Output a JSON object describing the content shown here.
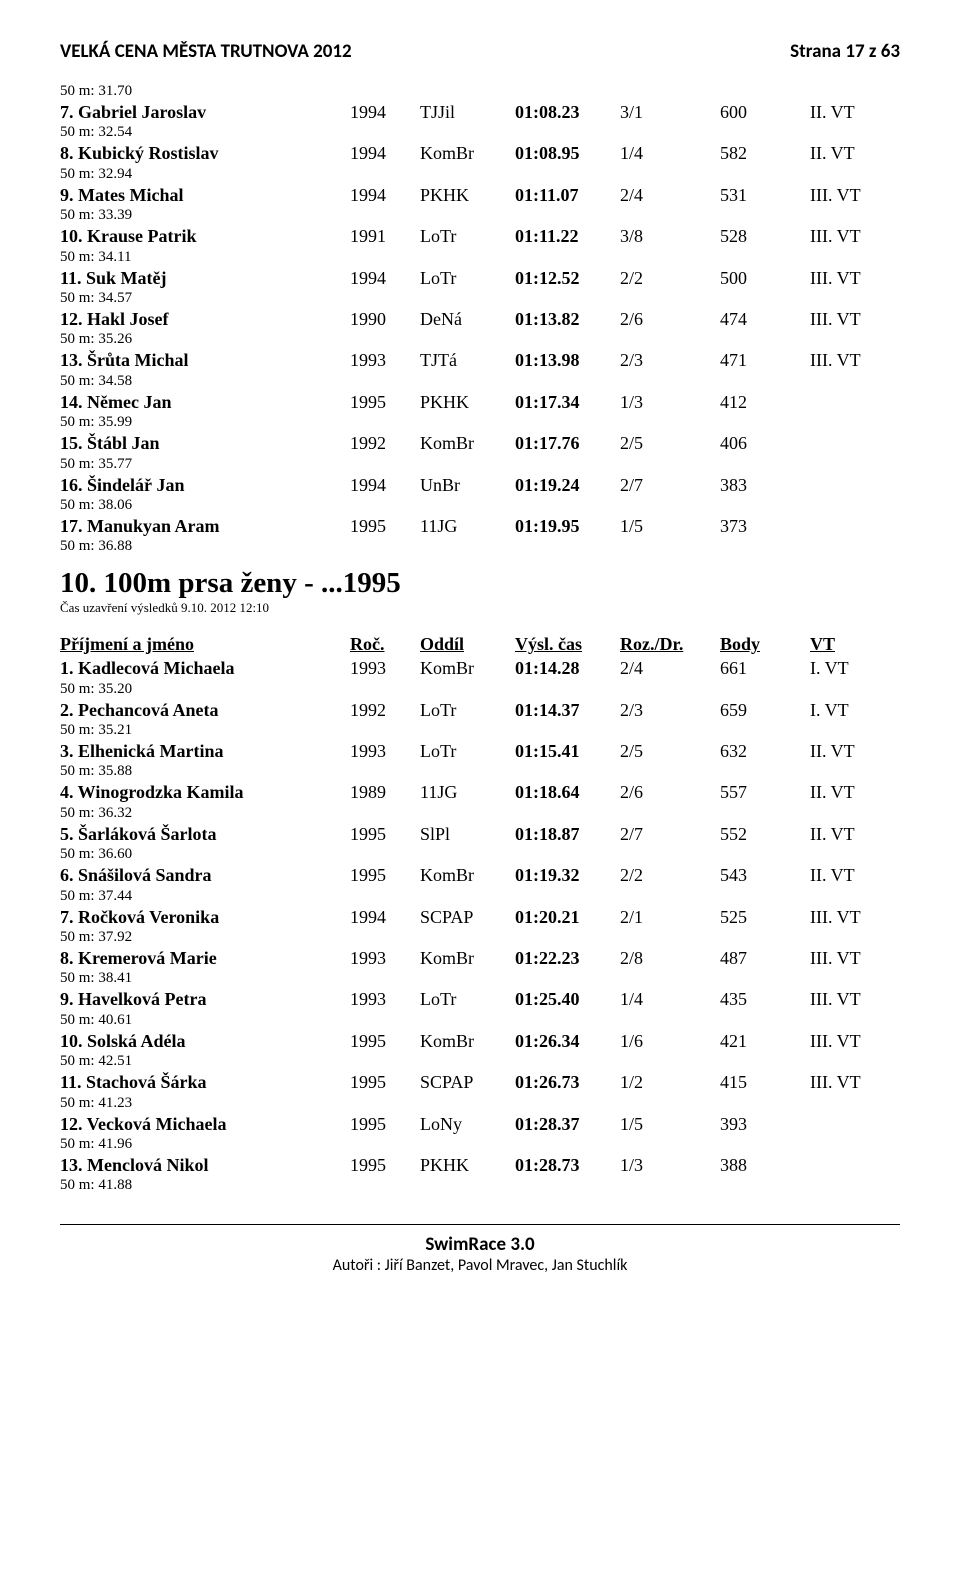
{
  "header": {
    "title": "VELKÁ CENA MĚSTA TRUTNOVA 2012",
    "page": "Strana 17 z 63"
  },
  "table1": {
    "first_split": "50 m: 31.70",
    "rows": [
      {
        "name": "7. Gabriel Jaroslav",
        "year": "1994",
        "club": "TJJil",
        "time": "01:08.23",
        "rozdr": "3/1",
        "body": "600",
        "vt": "II. VT",
        "split": "50 m: 32.54"
      },
      {
        "name": "8. Kubický Rostislav",
        "year": "1994",
        "club": "KomBr",
        "time": "01:08.95",
        "rozdr": "1/4",
        "body": "582",
        "vt": "II. VT",
        "split": "50 m: 32.94"
      },
      {
        "name": "9. Mates Michal",
        "year": "1994",
        "club": "PKHK",
        "time": "01:11.07",
        "rozdr": "2/4",
        "body": "531",
        "vt": "III. VT",
        "split": "50 m: 33.39"
      },
      {
        "name": "10. Krause Patrik",
        "year": "1991",
        "club": "LoTr",
        "time": "01:11.22",
        "rozdr": "3/8",
        "body": "528",
        "vt": "III. VT",
        "split": "50 m: 34.11"
      },
      {
        "name": "11. Suk Matěj",
        "year": "1994",
        "club": "LoTr",
        "time": "01:12.52",
        "rozdr": "2/2",
        "body": "500",
        "vt": "III. VT",
        "split": "50 m: 34.57"
      },
      {
        "name": "12. Hakl Josef",
        "year": "1990",
        "club": "DeNá",
        "time": "01:13.82",
        "rozdr": "2/6",
        "body": "474",
        "vt": "III. VT",
        "split": "50 m: 35.26"
      },
      {
        "name": "13. Šrůta Michal",
        "year": "1993",
        "club": "TJTá",
        "time": "01:13.98",
        "rozdr": "2/3",
        "body": "471",
        "vt": "III. VT",
        "split": "50 m: 34.58"
      },
      {
        "name": "14. Němec Jan",
        "year": "1995",
        "club": "PKHK",
        "time": "01:17.34",
        "rozdr": "1/3",
        "body": "412",
        "vt": "",
        "split": "50 m: 35.99"
      },
      {
        "name": "15. Štábl Jan",
        "year": "1992",
        "club": "KomBr",
        "time": "01:17.76",
        "rozdr": "2/5",
        "body": "406",
        "vt": "",
        "split": "50 m: 35.77"
      },
      {
        "name": "16. Šindelář Jan",
        "year": "1994",
        "club": "UnBr",
        "time": "01:19.24",
        "rozdr": "2/7",
        "body": "383",
        "vt": "",
        "split": "50 m: 38.06"
      },
      {
        "name": "17. Manukyan Aram",
        "year": "1995",
        "club": "11JG",
        "time": "01:19.95",
        "rozdr": "1/5",
        "body": "373",
        "vt": "",
        "split": "50 m: 36.88"
      }
    ]
  },
  "section": {
    "title": "10. 100m prsa ženy - ...1995",
    "sub": "Čas uzavření výsledků 9.10. 2012 12:10"
  },
  "columns": {
    "name": "Příjmení a jméno",
    "year": "Roč.",
    "club": "Oddíl",
    "time": "Výsl. čas",
    "rozdr": "Roz./Dr.",
    "body": "Body",
    "vt": "VT"
  },
  "table2": {
    "rows": [
      {
        "name": "1. Kadlecová Michaela",
        "year": "1993",
        "club": "KomBr",
        "time": "01:14.28",
        "rozdr": "2/4",
        "body": "661",
        "vt": "I. VT",
        "split": "50 m: 35.20"
      },
      {
        "name": "2. Pechancová Aneta",
        "year": "1992",
        "club": "LoTr",
        "time": "01:14.37",
        "rozdr": "2/3",
        "body": "659",
        "vt": "I. VT",
        "split": "50 m: 35.21"
      },
      {
        "name": "3. Elhenická Martina",
        "year": "1993",
        "club": "LoTr",
        "time": "01:15.41",
        "rozdr": "2/5",
        "body": "632",
        "vt": "II. VT",
        "split": "50 m: 35.88"
      },
      {
        "name": "4. Winogrodzka Kamila",
        "year": "1989",
        "club": "11JG",
        "time": "01:18.64",
        "rozdr": "2/6",
        "body": "557",
        "vt": "II. VT",
        "split": "50 m: 36.32"
      },
      {
        "name": "5. Šarláková Šarlota",
        "year": "1995",
        "club": "SlPl",
        "time": "01:18.87",
        "rozdr": "2/7",
        "body": "552",
        "vt": "II. VT",
        "split": "50 m: 36.60"
      },
      {
        "name": "6. Snášilová Sandra",
        "year": "1995",
        "club": "KomBr",
        "time": "01:19.32",
        "rozdr": "2/2",
        "body": "543",
        "vt": "II. VT",
        "split": "50 m: 37.44"
      },
      {
        "name": "7. Ročková Veronika",
        "year": "1994",
        "club": "SCPAP",
        "time": "01:20.21",
        "rozdr": "2/1",
        "body": "525",
        "vt": "III. VT",
        "split": "50 m: 37.92"
      },
      {
        "name": "8. Kremerová Marie",
        "year": "1993",
        "club": "KomBr",
        "time": "01:22.23",
        "rozdr": "2/8",
        "body": "487",
        "vt": "III. VT",
        "split": "50 m: 38.41"
      },
      {
        "name": "9. Havelková Petra",
        "year": "1993",
        "club": "LoTr",
        "time": "01:25.40",
        "rozdr": "1/4",
        "body": "435",
        "vt": "III. VT",
        "split": "50 m: 40.61"
      },
      {
        "name": "10. Solská Adéla",
        "year": "1995",
        "club": "KomBr",
        "time": "01:26.34",
        "rozdr": "1/6",
        "body": "421",
        "vt": "III. VT",
        "split": "50 m: 42.51"
      },
      {
        "name": "11. Stachová Šárka",
        "year": "1995",
        "club": "SCPAP",
        "time": "01:26.73",
        "rozdr": "1/2",
        "body": "415",
        "vt": "III. VT",
        "split": "50 m: 41.23"
      },
      {
        "name": "12. Vecková Michaela",
        "year": "1995",
        "club": "LoNy",
        "time": "01:28.37",
        "rozdr": "1/5",
        "body": "393",
        "vt": "",
        "split": "50 m: 41.96"
      },
      {
        "name": "13. Menclová Nikol",
        "year": "1995",
        "club": "PKHK",
        "time": "01:28.73",
        "rozdr": "1/3",
        "body": "388",
        "vt": "",
        "split": "50 m: 41.88"
      }
    ]
  },
  "footer": {
    "title": "SwimRace 3.0",
    "sub": "Autoři : Jiří Banzet, Pavol Mravec, Jan Stuchlík"
  }
}
